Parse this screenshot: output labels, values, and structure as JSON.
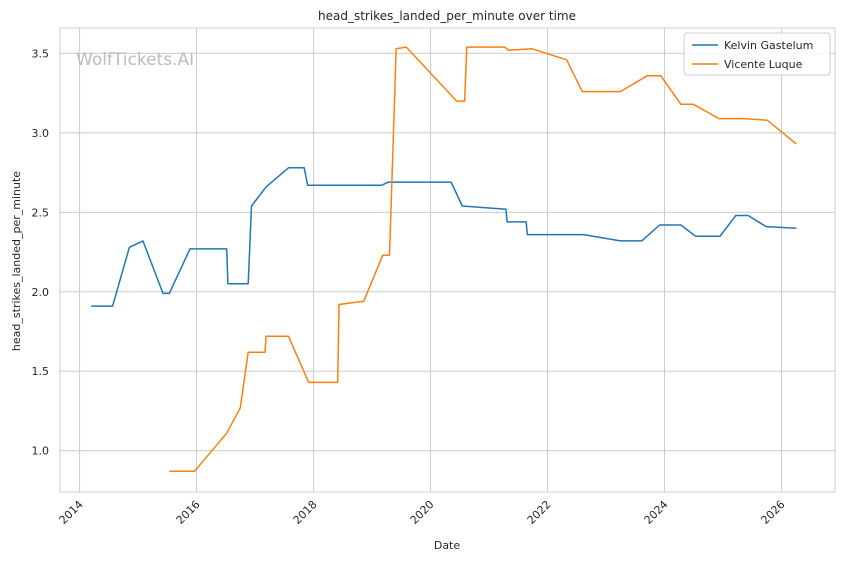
{
  "chart_data": {
    "type": "line",
    "title": "head_strikes_landed_per_minute over time",
    "xlabel": "Date",
    "ylabel": "head_strikes_landed_per_minute",
    "watermark": "WolfTickets.AI",
    "xlim": [
      "2013-09-01",
      "2026-12-01"
    ],
    "ylim": [
      0.74,
      3.66
    ],
    "x_ticks": [
      "2014",
      "2016",
      "2018",
      "2020",
      "2022",
      "2024",
      "2026"
    ],
    "y_ticks": [
      "1.0",
      "1.5",
      "2.0",
      "2.5",
      "3.0",
      "3.5"
    ],
    "grid": true,
    "legend_position": "top-right",
    "series": [
      {
        "name": "Kelvin Gastelum",
        "color": "#1f77b4",
        "points": [
          [
            "2014-03-15",
            1.91
          ],
          [
            "2014-07-26",
            1.91
          ],
          [
            "2014-11-08",
            2.28
          ],
          [
            "2015-01-31",
            2.32
          ],
          [
            "2015-06-06",
            1.99
          ],
          [
            "2015-07-15",
            1.99
          ],
          [
            "2015-11-21",
            2.27
          ],
          [
            "2016-07-08",
            2.27
          ],
          [
            "2016-07-15",
            2.05
          ],
          [
            "2016-11-19",
            2.05
          ],
          [
            "2016-12-10",
            2.54
          ],
          [
            "2017-03-11",
            2.66
          ],
          [
            "2017-07-29",
            2.78
          ],
          [
            "2017-11-04",
            2.78
          ],
          [
            "2017-11-25",
            2.67
          ],
          [
            "2018-06-01",
            2.67
          ],
          [
            "2019-03-02",
            2.67
          ],
          [
            "2019-04-13",
            2.69
          ],
          [
            "2019-08-01",
            2.69
          ],
          [
            "2020-05-09",
            2.69
          ],
          [
            "2020-07-18",
            2.54
          ],
          [
            "2021-04-17",
            2.52
          ],
          [
            "2021-04-24",
            2.44
          ],
          [
            "2021-08-21",
            2.44
          ],
          [
            "2021-08-28",
            2.36
          ],
          [
            "2022-08-13",
            2.36
          ],
          [
            "2023-04-01",
            2.32
          ],
          [
            "2023-08-12",
            2.32
          ],
          [
            "2023-12-02",
            2.42
          ],
          [
            "2024-04-13",
            2.42
          ],
          [
            "2024-07-13",
            2.35
          ],
          [
            "2024-12-14",
            2.35
          ],
          [
            "2025-03-22",
            2.48
          ],
          [
            "2025-06-07",
            2.48
          ],
          [
            "2025-09-27",
            2.41
          ],
          [
            "2026-04-04",
            2.4
          ]
        ]
      },
      {
        "name": "Vicente Luque",
        "color": "#ff7f0e",
        "points": [
          [
            "2015-07-15",
            0.87
          ],
          [
            "2015-12-19",
            0.87
          ],
          [
            "2016-07-08",
            1.11
          ],
          [
            "2016-10-01",
            1.27
          ],
          [
            "2016-11-19",
            1.62
          ],
          [
            "2017-03-04",
            1.62
          ],
          [
            "2017-03-11",
            1.72
          ],
          [
            "2017-07-29",
            1.72
          ],
          [
            "2017-12-02",
            1.43
          ],
          [
            "2018-06-01",
            1.43
          ],
          [
            "2018-06-09",
            1.92
          ],
          [
            "2018-11-10",
            1.94
          ],
          [
            "2019-03-09",
            2.23
          ],
          [
            "2019-04-20",
            2.23
          ],
          [
            "2019-06-01",
            3.53
          ],
          [
            "2019-08-03",
            3.54
          ],
          [
            "2020-06-13",
            3.2
          ],
          [
            "2020-08-01",
            3.2
          ],
          [
            "2020-08-15",
            3.54
          ],
          [
            "2021-04-10",
            3.54
          ],
          [
            "2021-05-01",
            3.52
          ],
          [
            "2021-09-25",
            3.53
          ],
          [
            "2022-04-30",
            3.46
          ],
          [
            "2022-08-06",
            3.26
          ],
          [
            "2023-04-01",
            3.26
          ],
          [
            "2023-09-16",
            3.36
          ],
          [
            "2023-12-09",
            3.36
          ],
          [
            "2024-04-13",
            3.18
          ],
          [
            "2024-06-29",
            3.18
          ],
          [
            "2024-12-07",
            3.09
          ],
          [
            "2025-05-10",
            3.09
          ],
          [
            "2025-10-04",
            3.08
          ],
          [
            "2026-04-04",
            2.93
          ]
        ]
      }
    ]
  }
}
